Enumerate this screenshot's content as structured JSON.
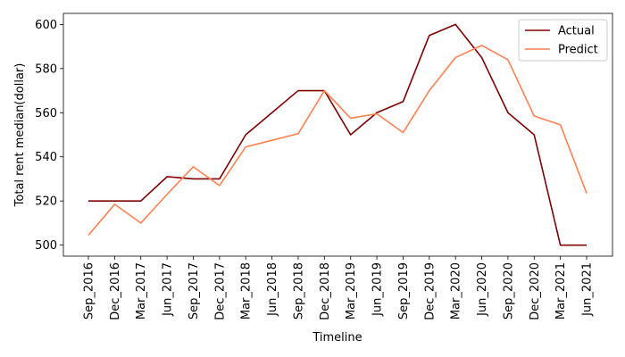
{
  "chart_data": {
    "type": "line",
    "title": "",
    "xlabel": "Timeline",
    "ylabel": "Total rent median(dollar)",
    "categories": [
      "Sep_2016",
      "Dec_2016",
      "Mar_2017",
      "Jun_2017",
      "Sep_2017",
      "Dec_2017",
      "Mar_2018",
      "Jun_2018",
      "Sep_2018",
      "Dec_2018",
      "Mar_2019",
      "Jun_2019",
      "Sep_2019",
      "Dec_2019",
      "Mar_2020",
      "Jun_2020",
      "Sep_2020",
      "Dec_2020",
      "Mar_2021",
      "Jun_2021"
    ],
    "ylim": [
      495,
      605
    ],
    "yticks": [
      500,
      520,
      540,
      560,
      580,
      600
    ],
    "grid": false,
    "legend_position": "top-right",
    "series": [
      {
        "name": "Actual",
        "color": "#800000",
        "values": [
          520,
          520,
          520,
          531,
          530,
          530,
          550,
          560,
          570,
          570,
          550,
          560,
          565,
          595,
          600,
          585,
          560,
          550,
          500,
          500
        ]
      },
      {
        "name": "Predict",
        "color": "#ff7f50",
        "values": [
          504.5,
          518.5,
          510,
          523,
          535.5,
          527,
          544.5,
          547.5,
          550.5,
          570,
          557.5,
          559.5,
          551,
          570,
          585,
          590.5,
          584,
          558.5,
          554.5,
          523.5
        ]
      }
    ]
  }
}
